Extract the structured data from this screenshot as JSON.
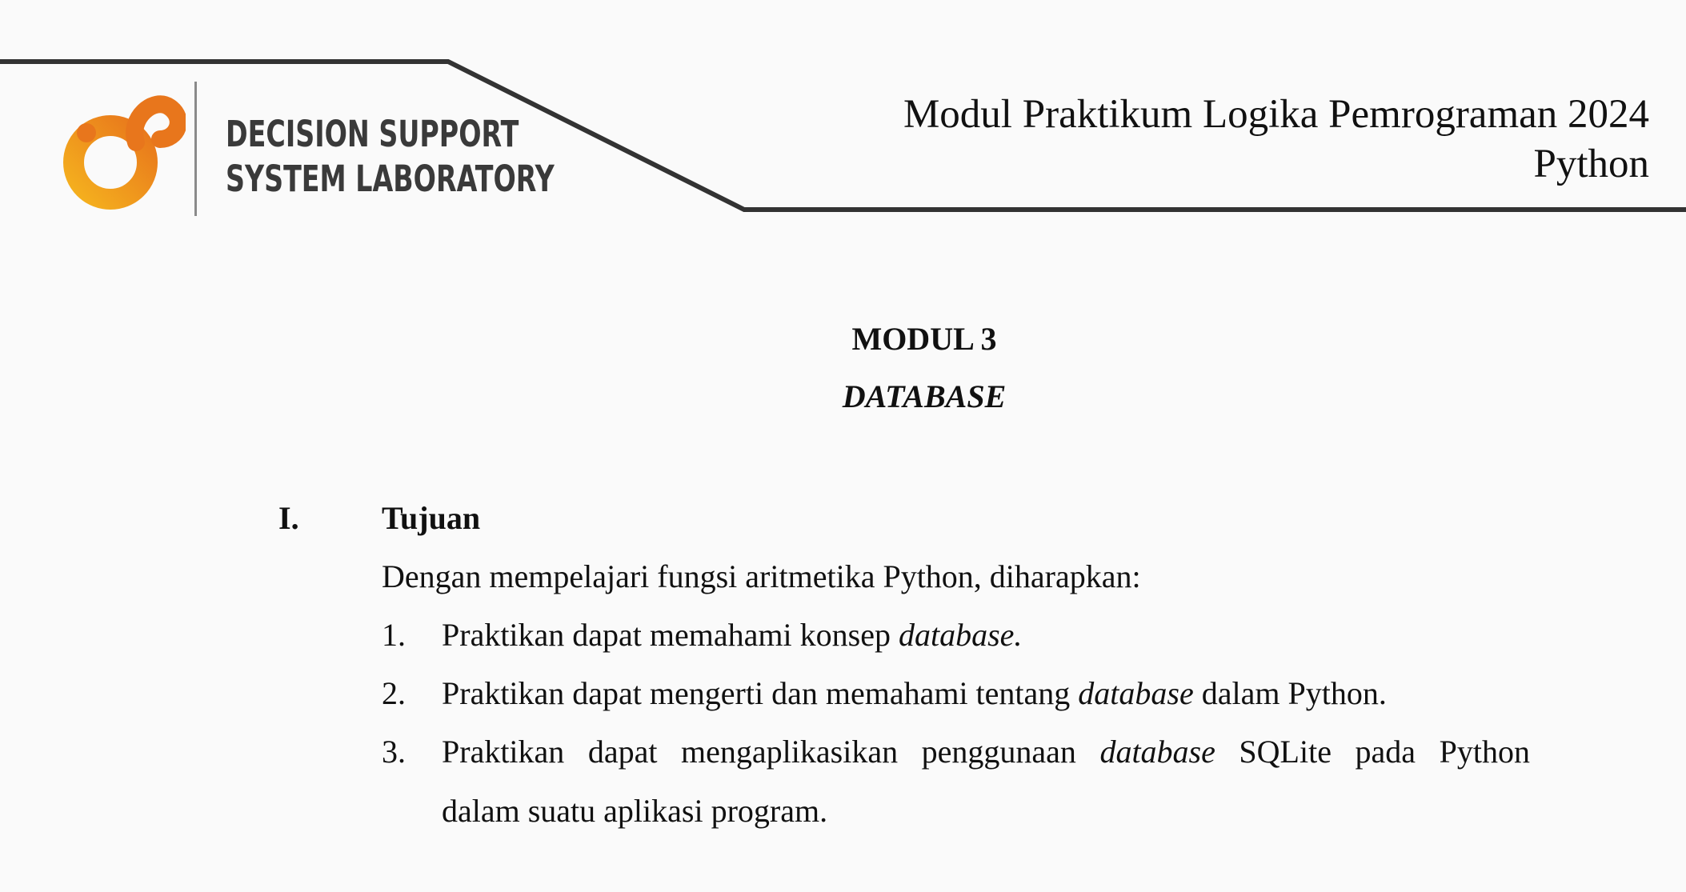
{
  "header": {
    "lab_name_line1": "DECISION SUPPORT",
    "lab_name_line2": "SYSTEM LABORATORY",
    "module_title_line1": "Modul Praktikum Logika Pemrograman 2024",
    "module_title_line2": "Python",
    "logo_icon": "dss-lab-logo",
    "logo_colors": {
      "orange": "#e8761c",
      "yellow": "#f5b21e",
      "line": "#333333"
    }
  },
  "title": {
    "module_number": "MODUL 3",
    "module_topic": "DATABASE"
  },
  "section": {
    "number": "I.",
    "heading": "Tujuan",
    "intro": "Dengan mempelajari fungsi aritmetika Python, diharapkan:",
    "items": [
      {
        "num": "1.",
        "before": "Praktikan dapat memahami konsep ",
        "italic": "database.",
        "after": ""
      },
      {
        "num": "2.",
        "before": "Praktikan dapat mengerti dan memahami tentang ",
        "italic": "database",
        "after": " dalam Python."
      },
      {
        "num": "3.",
        "words_before": [
          "Praktikan",
          "dapat",
          "mengaplikasikan",
          "penggunaan"
        ],
        "italic": "database",
        "words_after": [
          "SQLite",
          "pada",
          "Python"
        ],
        "continuation": "dalam suatu aplikasi program."
      }
    ]
  }
}
